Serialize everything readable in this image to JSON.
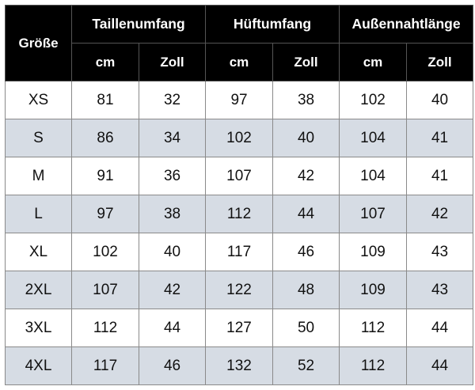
{
  "table": {
    "size_header": "Größe",
    "groups": [
      "Taillenumfang",
      "Hüftumfang",
      "Außennahtlänge"
    ],
    "units": [
      "cm",
      "Zoll",
      "cm",
      "Zoll",
      "cm",
      "Zoll"
    ],
    "rows": [
      {
        "size": "XS",
        "values": [
          "81",
          "32",
          "97",
          "38",
          "102",
          "40"
        ]
      },
      {
        "size": "S",
        "values": [
          "86",
          "34",
          "102",
          "40",
          "104",
          "41"
        ]
      },
      {
        "size": "M",
        "values": [
          "91",
          "36",
          "107",
          "42",
          "104",
          "41"
        ]
      },
      {
        "size": "L",
        "values": [
          "97",
          "38",
          "112",
          "44",
          "107",
          "42"
        ]
      },
      {
        "size": "XL",
        "values": [
          "102",
          "40",
          "117",
          "46",
          "109",
          "43"
        ]
      },
      {
        "size": "2XL",
        "values": [
          "107",
          "42",
          "122",
          "48",
          "109",
          "43"
        ]
      },
      {
        "size": "3XL",
        "values": [
          "112",
          "44",
          "127",
          "50",
          "112",
          "44"
        ]
      },
      {
        "size": "4XL",
        "values": [
          "117",
          "46",
          "132",
          "52",
          "112",
          "44"
        ]
      }
    ]
  },
  "colors": {
    "header_bg": "#000000",
    "header_text": "#ffffff",
    "stripe_row_bg": "#d6dce4",
    "plain_row_bg": "#ffffff"
  }
}
